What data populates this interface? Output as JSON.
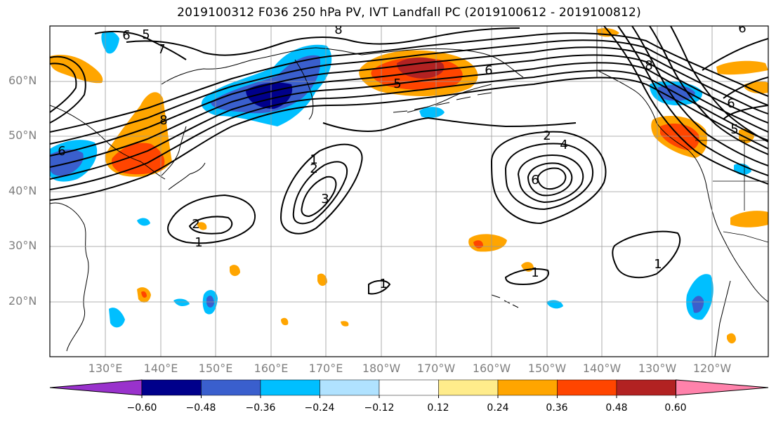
{
  "title": "2019100312 F036 250 hPa PV, IVT Landfall PC (2019100612 - 2019100812)",
  "latitude_labels": [
    "60°N",
    "50°N",
    "40°N",
    "30°N",
    "20°N"
  ],
  "longitude_labels": [
    "130°E",
    "140°E",
    "150°E",
    "160°E",
    "170°E",
    "180°W",
    "170°W",
    "160°W",
    "150°W",
    "140°W",
    "130°W",
    "120°W"
  ],
  "colorbar": {
    "tick_labels": [
      "−0.60",
      "−0.48",
      "−0.36",
      "−0.24",
      "−0.12",
      "0.12",
      "0.24",
      "0.36",
      "0.48",
      "0.60"
    ],
    "colors": [
      "#9932cc",
      "#00008b",
      "#3a5fcd",
      "#00bfff",
      "#b0e2ff",
      "#ffffff",
      "#ffec8b",
      "#ffa500",
      "#ff4500",
      "#b22222",
      "#ff82ab"
    ]
  },
  "contour_labels": [
    "5",
    "6",
    "7",
    "8",
    "8",
    "6",
    "5",
    "6",
    "8",
    "2",
    "4",
    "6",
    "2",
    "1",
    "3",
    "2",
    "1",
    "1",
    "1",
    "1",
    "6",
    "5",
    "6"
  ]
}
